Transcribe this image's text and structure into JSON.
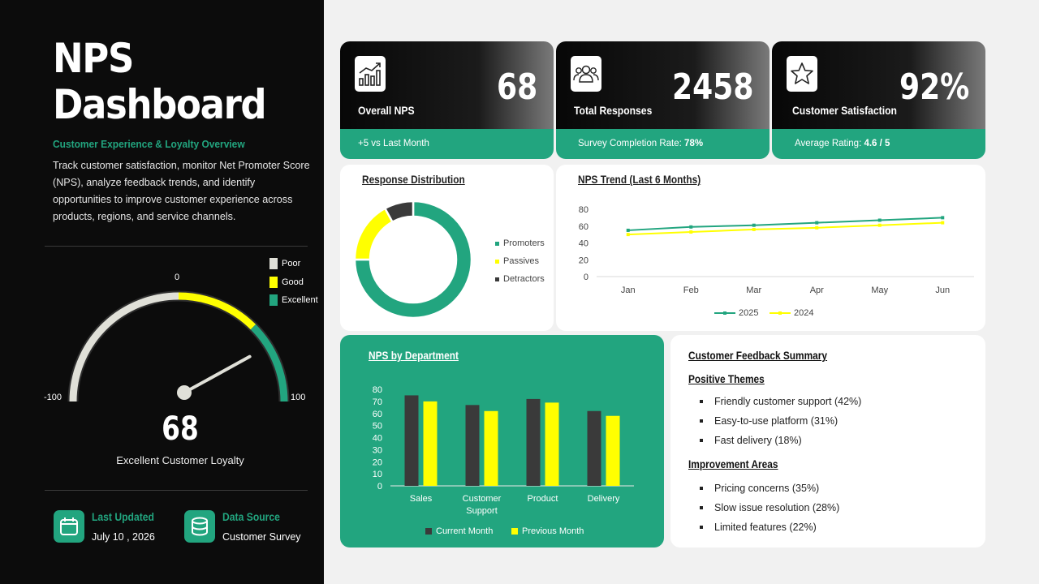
{
  "header": {
    "title_line1": "NPS",
    "title_line2": "Dashboard",
    "subtitle": "Customer Experience & Loyalty Overview",
    "description": "Track customer satisfaction, monitor Net Promoter Score (NPS), analyze feedback trends, and identify opportunities to improve customer experience across products, regions, and service channels."
  },
  "gauge": {
    "value": "68",
    "numeric_value": 68,
    "min_label": "-100",
    "max_label": "100",
    "mid_label": "0",
    "caption": "Excellent Customer Loyalty",
    "legend": [
      {
        "label": "Poor",
        "color": "#e0e0d8"
      },
      {
        "label": "Good",
        "color": "#ffff00"
      },
      {
        "label": "Excellent",
        "color": "#22a57f"
      }
    ]
  },
  "info": {
    "updated_title": "Last Updated",
    "updated_value": "July 10 , 2026",
    "source_title": "Data Source",
    "source_value": "Customer Survey"
  },
  "kpis": [
    {
      "label": "Overall NPS",
      "value": "68",
      "footer": "+5 vs Last Month",
      "footer_bold": "",
      "icon": "chart-icon"
    },
    {
      "label": "Total Responses",
      "value": "2458",
      "footer": "Survey Completion Rate: ",
      "footer_bold": "78%",
      "icon": "users-icon"
    },
    {
      "label": "Customer Satisfaction",
      "value": "92%",
      "footer": "Average Rating: ",
      "footer_bold": "4.6 / 5",
      "icon": "star-icon"
    }
  ],
  "response_distribution": {
    "title": "Response Distribution",
    "legend": [
      "Promoters",
      "Passives",
      "Detractors"
    ]
  },
  "nps_trend": {
    "title": "NPS Trend (Last 6 Months)",
    "y_ticks": [
      "80",
      "60",
      "40",
      "20",
      "0"
    ],
    "legend": [
      "2025",
      "2024"
    ]
  },
  "nps_department": {
    "title": "NPS by Department",
    "y_ticks": [
      "80",
      "70",
      "60",
      "50",
      "40",
      "30",
      "20",
      "10",
      "0"
    ],
    "categories": [
      "Sales",
      "Customer",
      "Product",
      "Delivery"
    ],
    "category_line2": [
      "",
      "Support",
      "",
      ""
    ],
    "legend": [
      "Current Month",
      "Previous Month"
    ]
  },
  "feedback": {
    "title": "Customer Feedback Summary",
    "positive_title": "Positive Themes",
    "positive": [
      "Friendly customer support (42%)",
      "Easy-to-use platform (31%)",
      "Fast delivery (18%)"
    ],
    "improve_title": "Improvement Areas",
    "improve": [
      "Pricing concerns (35%)",
      "Slow issue resolution (28%)",
      "Limited features (22%)"
    ]
  },
  "colors": {
    "accent": "#22a57f",
    "yellow": "#ffff00",
    "dark": "#3a3a3a"
  },
  "chart_data": [
    {
      "type": "pie",
      "title": "Response Distribution",
      "categories": [
        "Promoters",
        "Passives",
        "Detractors"
      ],
      "values": [
        75,
        17,
        8
      ]
    },
    {
      "type": "line",
      "title": "NPS Trend (Last 6 Months)",
      "x": [
        "Jan",
        "Feb",
        "Mar",
        "Apr",
        "May",
        "Jun"
      ],
      "ylim": [
        0,
        80
      ],
      "series": [
        {
          "name": "2025",
          "values": [
            55,
            59,
            61,
            64,
            67,
            70
          ],
          "color": "#22a57f"
        },
        {
          "name": "2024",
          "values": [
            50,
            53,
            56,
            58,
            61,
            64
          ],
          "color": "#ffff00"
        }
      ]
    },
    {
      "type": "bar",
      "title": "NPS by Department",
      "categories": [
        "Sales",
        "Customer Support",
        "Product",
        "Delivery"
      ],
      "ylim": [
        0,
        80
      ],
      "series": [
        {
          "name": "Current Month",
          "values": [
            75,
            67,
            72,
            62
          ],
          "color": "#3a3a3a"
        },
        {
          "name": "Previous Month",
          "values": [
            70,
            62,
            69,
            58
          ],
          "color": "#ffff00"
        }
      ]
    }
  ]
}
